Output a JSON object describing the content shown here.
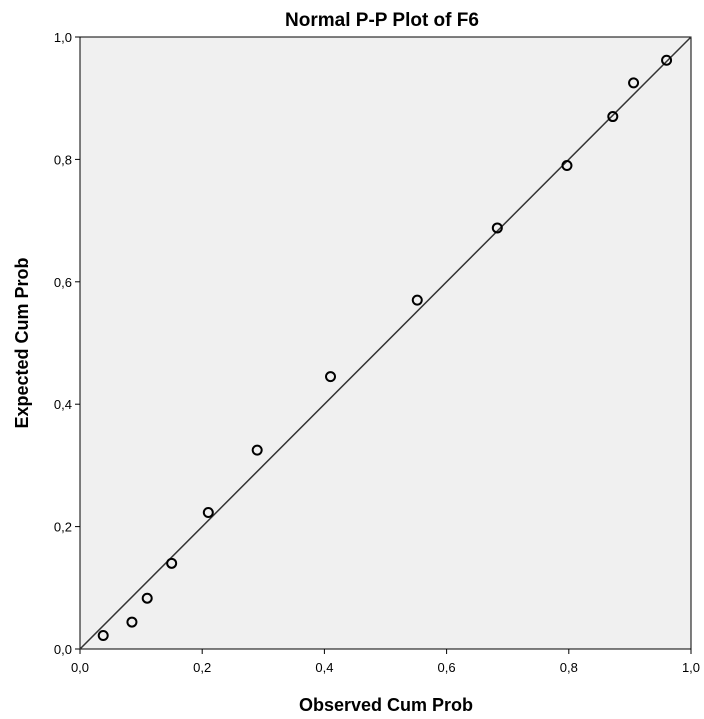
{
  "chart_data": {
    "type": "scatter",
    "title": "Normal P-P Plot of F6",
    "xlabel": "Observed Cum Prob",
    "ylabel": "Expected Cum Prob",
    "xlim": [
      0,
      1
    ],
    "ylim": [
      0,
      1
    ],
    "x_ticks": [
      "0,0",
      "0,2",
      "0,4",
      "0,6",
      "0,8",
      "1,0"
    ],
    "y_ticks": [
      "0,0",
      "0,2",
      "0,4",
      "0,6",
      "0,8",
      "1,0"
    ],
    "grid": false,
    "reference_line": {
      "x": [
        0,
        1
      ],
      "y": [
        0,
        1
      ]
    },
    "points": [
      {
        "x": 0.038,
        "y": 0.022
      },
      {
        "x": 0.085,
        "y": 0.044
      },
      {
        "x": 0.11,
        "y": 0.083
      },
      {
        "x": 0.15,
        "y": 0.14
      },
      {
        "x": 0.21,
        "y": 0.223
      },
      {
        "x": 0.29,
        "y": 0.325
      },
      {
        "x": 0.41,
        "y": 0.445
      },
      {
        "x": 0.552,
        "y": 0.57
      },
      {
        "x": 0.683,
        "y": 0.688
      },
      {
        "x": 0.797,
        "y": 0.79
      },
      {
        "x": 0.872,
        "y": 0.87
      },
      {
        "x": 0.906,
        "y": 0.925
      },
      {
        "x": 0.96,
        "y": 0.962
      }
    ],
    "colors": {
      "plot_background": "#f0f0f0",
      "marker_stroke": "#000000",
      "line": "#333333",
      "frame": "#000000"
    }
  }
}
